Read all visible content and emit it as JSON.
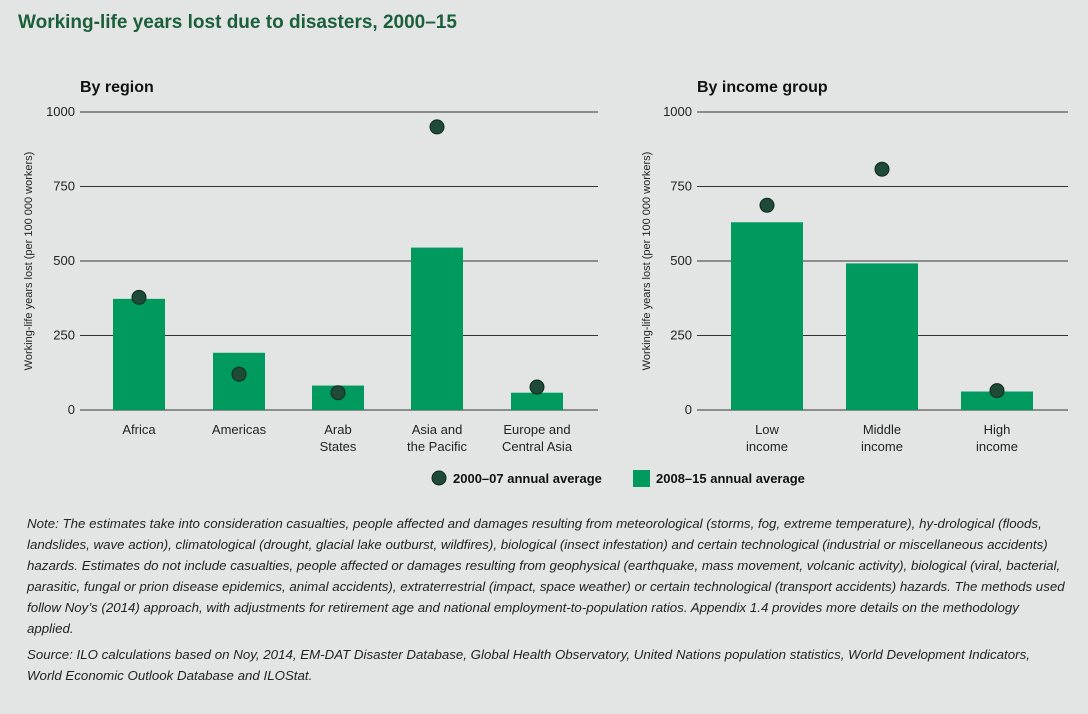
{
  "title": "Working-life years lost due to disasters, 2000–15",
  "colors": {
    "bar": "#009a5e",
    "dot": "#1f4a38",
    "dot_stroke": "#0b2a1c",
    "title": "#1b5e3a"
  },
  "legend": {
    "dot_label": "2000–07 annual average",
    "bar_label": "2008–15 annual average"
  },
  "chart_data": [
    {
      "type": "bar",
      "title": "By region",
      "ylabel": "Working-life years lost (per 100 000 workers)",
      "ylim": [
        0,
        1000
      ],
      "yticks": [
        "0",
        "250",
        "500",
        "750",
        "1000"
      ],
      "categories": [
        [
          "Africa"
        ],
        [
          "Americas"
        ],
        [
          "Arab",
          "States"
        ],
        [
          "Asia and",
          "the Pacific"
        ],
        [
          "Europe and",
          "Central Asia"
        ]
      ],
      "series": [
        {
          "name": "2008–15 annual average",
          "kind": "bar",
          "values": [
            373,
            192,
            82,
            545,
            58
          ]
        },
        {
          "name": "2000–07 annual average",
          "kind": "dot",
          "values": [
            378,
            120,
            58,
            950,
            77
          ]
        }
      ]
    },
    {
      "type": "bar",
      "title": "By income group",
      "ylabel": "Working-life years lost (per 100 000 workers)",
      "ylim": [
        0,
        1000
      ],
      "yticks": [
        "0",
        "250",
        "500",
        "750",
        "1000"
      ],
      "categories": [
        [
          "Low",
          "income"
        ],
        [
          "Middle",
          "income"
        ],
        [
          "High",
          "income"
        ]
      ],
      "series": [
        {
          "name": "2008–15 annual average",
          "kind": "bar",
          "values": [
            630,
            492,
            62
          ]
        },
        {
          "name": "2000–07 annual average",
          "kind": "dot",
          "values": [
            687,
            808,
            65
          ]
        }
      ]
    }
  ],
  "notes": {
    "note": "Note: The estimates take into consideration casualties, people affected and damages resulting from meteorological (storms, fog, extreme temperature), hy-drological (floods, landslides, wave action), climatological (drought, glacial lake outburst, wildfires), biological (insect infestation) and certain technological (industrial or miscellaneous accidents) hazards. Estimates do not include casualties, people affected or damages resulting from geophysical (earthquake, mass movement, volcanic activity), biological (viral, bacterial, parasitic, fungal or prion disease epidemics, animal accidents), extraterrestrial (impact, space weather) or certain technological (transport accidents) hazards. The methods used follow Noy’s (2014) approach, with adjustments for retirement age and national employment-to-population ratios. Appendix 1.4 provides more details on the methodology applied.",
    "source": "Source: ILO calculations based on Noy, 2014, EM-DAT Disaster Database, Global Health Observatory, United Nations population statistics, World Development Indicators, World Economic Outlook Database and ILOStat."
  }
}
